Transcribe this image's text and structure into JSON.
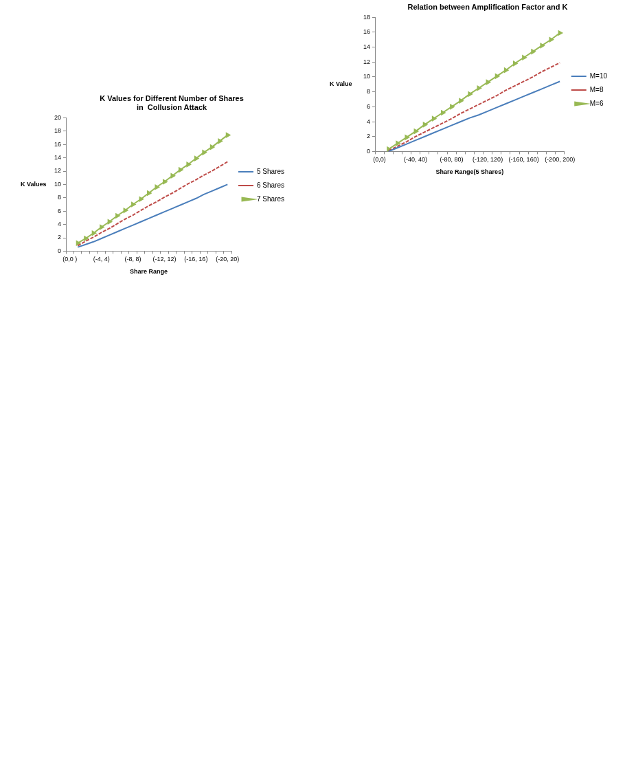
{
  "chart_data": [
    {
      "type": "line",
      "title": "K Values for Different Number of Shares\nin  Collusion Attack",
      "xlabel": "Share Range",
      "ylabel": "K Values",
      "categories": [
        "(0,0 )",
        null,
        null,
        null,
        "(-4, 4)",
        null,
        null,
        null,
        "(-8, 8)",
        null,
        null,
        null,
        "(-12, 12)",
        null,
        null,
        null,
        "(-16, 16)",
        null,
        null,
        null,
        "(-20, 20)"
      ],
      "series": [
        {
          "name": "5 Shares",
          "color": "#4a7ebb",
          "line_style": "solid",
          "marker": "none",
          "values": [
            null,
            0.6,
            1.0,
            1.4,
            1.9,
            2.4,
            2.9,
            3.4,
            3.9,
            4.4,
            4.9,
            5.4,
            5.9,
            6.4,
            6.9,
            7.4,
            7.9,
            8.5,
            9.0,
            9.5,
            10.0
          ]
        },
        {
          "name": "6 Shares",
          "color": "#be4b48",
          "line_style": "dashed",
          "marker": "none",
          "values": [
            null,
            0.8,
            1.5,
            2.1,
            2.8,
            3.4,
            4.1,
            4.8,
            5.4,
            6.1,
            6.8,
            7.4,
            8.1,
            8.7,
            9.4,
            10.1,
            10.7,
            11.4,
            12.0,
            12.7,
            13.4
          ]
        },
        {
          "name": "7 Shares",
          "color": "#98b954",
          "line_style": "solid",
          "marker": "triangle",
          "values": [
            null,
            1.2,
            1.9,
            2.7,
            3.6,
            4.4,
            5.3,
            6.1,
            7.0,
            7.8,
            8.7,
            9.6,
            10.4,
            11.3,
            12.2,
            13.0,
            13.9,
            14.8,
            15.6,
            16.5,
            17.4
          ]
        }
      ],
      "ylim": [
        0,
        20
      ],
      "yticks": [
        0,
        2,
        4,
        6,
        8,
        10,
        12,
        14,
        16,
        18,
        20
      ],
      "grid": false,
      "legend": "right"
    },
    {
      "type": "line",
      "title": "Relation between Amplification Factor and K",
      "xlabel": "Share Range(5 Shares)",
      "ylabel": "K Value",
      "categories": [
        "(0,0)",
        null,
        null,
        null,
        "(-40, 40)",
        null,
        null,
        null,
        "(-80, 80)",
        null,
        null,
        null,
        "(-120, 120)",
        null,
        null,
        null,
        "(-160, 160)",
        null,
        null,
        null,
        "(-200, 200)"
      ],
      "series": [
        {
          "name": "M=10",
          "color": "#4a7ebb",
          "line_style": "solid",
          "marker": "none",
          "values": [
            null,
            0.0,
            0.5,
            1.0,
            1.5,
            2.0,
            2.5,
            3.0,
            3.5,
            4.0,
            4.5,
            4.9,
            5.4,
            5.9,
            6.4,
            6.9,
            7.4,
            7.9,
            8.4,
            8.9,
            9.4
          ]
        },
        {
          "name": "M=8",
          "color": "#be4b48",
          "line_style": "dashed",
          "marker": "none",
          "values": [
            null,
            0.1,
            0.7,
            1.3,
            2.0,
            2.6,
            3.2,
            3.8,
            4.4,
            5.1,
            5.7,
            6.3,
            6.9,
            7.5,
            8.2,
            8.8,
            9.4,
            10.0,
            10.7,
            11.3,
            11.9
          ]
        },
        {
          "name": "M=6",
          "color": "#98b954",
          "line_style": "solid",
          "marker": "triangle",
          "values": [
            null,
            0.3,
            1.1,
            1.9,
            2.7,
            3.6,
            4.4,
            5.2,
            6.0,
            6.8,
            7.7,
            8.5,
            9.3,
            10.1,
            10.9,
            11.8,
            12.6,
            13.4,
            14.2,
            15.0,
            15.9
          ]
        }
      ],
      "ylim": [
        0,
        18
      ],
      "yticks": [
        0,
        2,
        4,
        6,
        8,
        10,
        12,
        14,
        16,
        18
      ],
      "grid": false,
      "legend": "right"
    }
  ]
}
